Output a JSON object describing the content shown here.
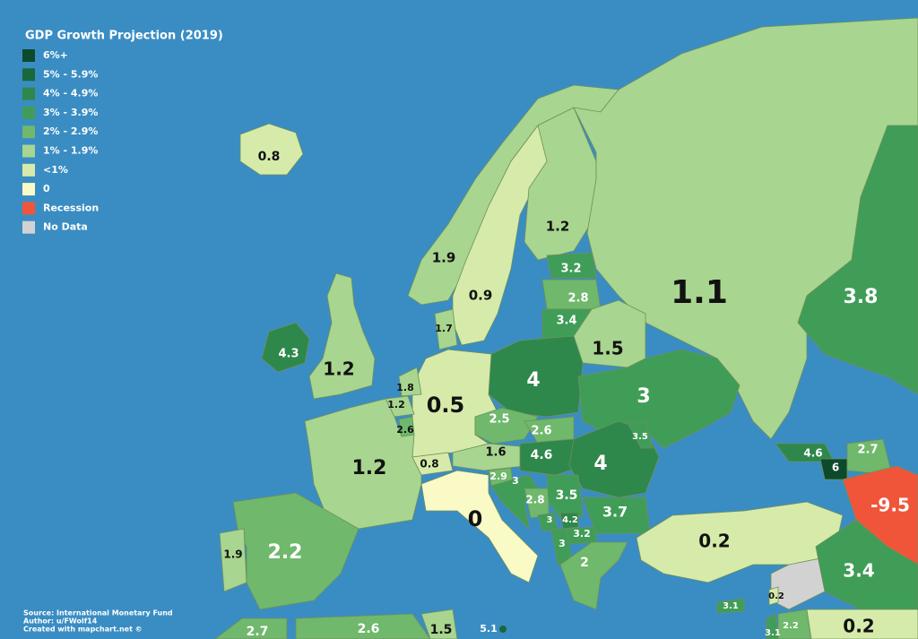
{
  "title": "GDP Growth Projection (2019)",
  "legend": [
    {
      "label": "6%+",
      "color": "#0c4a2a"
    },
    {
      "label": "5% - 5.9%",
      "color": "#17683c"
    },
    {
      "label": "4% - 4.9%",
      "color": "#2e874b"
    },
    {
      "label": "3% - 3.9%",
      "color": "#3f9d57"
    },
    {
      "label": "2% - 2.9%",
      "color": "#6fb86c"
    },
    {
      "label": "1% - 1.9%",
      "color": "#a8d58f"
    },
    {
      "label": "<1%",
      "color": "#d6ebaa"
    },
    {
      "label": "0",
      "color": "#fafac6"
    },
    {
      "label": "Recession",
      "color": "#f0553a"
    },
    {
      "label": "No Data",
      "color": "#d2d2d2"
    }
  ],
  "regions": [
    {
      "value": "0.8",
      "color": "#d6ebaa"
    },
    {
      "value": "4.3",
      "color": "#2e874b"
    },
    {
      "value": "1.2",
      "color": "#a8d58f"
    },
    {
      "value": "1.9",
      "color": "#a8d58f"
    },
    {
      "value": "0.9",
      "color": "#d6ebaa"
    },
    {
      "value": "1.2",
      "color": "#a8d58f"
    },
    {
      "value": "1.1",
      "color": "#a8d58f"
    },
    {
      "value": "3.8",
      "color": "#3f9d57"
    },
    {
      "value": "3.2",
      "color": "#3f9d57"
    },
    {
      "value": "2.8",
      "color": "#6fb86c"
    },
    {
      "value": "3.4",
      "color": "#3f9d57"
    },
    {
      "value": "1.5",
      "color": "#a8d58f"
    },
    {
      "value": "4",
      "color": "#2e874b"
    },
    {
      "value": "3",
      "color": "#3f9d57"
    },
    {
      "value": "0.5",
      "color": "#d6ebaa"
    },
    {
      "value": "1.8",
      "color": "#a8d58f"
    },
    {
      "value": "1.2",
      "color": "#a8d58f"
    },
    {
      "value": "2.6",
      "color": "#6fb86c"
    },
    {
      "value": "1.2",
      "color": "#a8d58f"
    },
    {
      "value": "0.8",
      "color": "#d6ebaa"
    },
    {
      "value": "1.6",
      "color": "#a8d58f"
    },
    {
      "value": "2.5",
      "color": "#6fb86c"
    },
    {
      "value": "2.6",
      "color": "#6fb86c"
    },
    {
      "value": "4.6",
      "color": "#2e874b"
    },
    {
      "value": "4",
      "color": "#2e874b"
    },
    {
      "value": "3.5",
      "color": "#3f9d57"
    },
    {
      "value": "0",
      "color": "#fafac6"
    },
    {
      "value": "2.9",
      "color": "#6fb86c"
    },
    {
      "value": "3",
      "color": "#3f9d57"
    },
    {
      "value": "2.8",
      "color": "#6fb86c"
    },
    {
      "value": "3.5",
      "color": "#3f9d57"
    },
    {
      "value": "3",
      "color": "#3f9d57"
    },
    {
      "value": "4.2",
      "color": "#2e874b"
    },
    {
      "value": "3.2",
      "color": "#3f9d57"
    },
    {
      "value": "3",
      "color": "#3f9d57"
    },
    {
      "value": "3.7",
      "color": "#3f9d57"
    },
    {
      "value": "2",
      "color": "#6fb86c"
    },
    {
      "value": "2.2",
      "color": "#6fb86c"
    },
    {
      "value": "1.9",
      "color": "#a8d58f"
    },
    {
      "value": "0.2",
      "color": "#d6ebaa"
    },
    {
      "value": "4.6",
      "color": "#2e874b"
    },
    {
      "value": "6",
      "color": "#0c4a2a"
    },
    {
      "value": "2.7",
      "color": "#6fb86c"
    },
    {
      "value": "-9.5",
      "color": "#f0553a"
    },
    {
      "value": "3.4",
      "color": "#3f9d57"
    },
    {
      "value": "0.2",
      "color": "#d6ebaa"
    },
    {
      "value": "3.1",
      "color": "#3f9d57"
    },
    {
      "value": "3.1",
      "color": "#3f9d57"
    },
    {
      "value": "2.2",
      "color": "#6fb86c"
    },
    {
      "value": "0.2",
      "color": "#d6ebaa"
    },
    {
      "value": "1.7",
      "color": "#a8d58f"
    },
    {
      "value": "2.7",
      "color": "#6fb86c"
    },
    {
      "value": "2.6",
      "color": "#6fb86c"
    },
    {
      "value": "1.5",
      "color": "#a8d58f"
    },
    {
      "value": "5.1",
      "color": "#17683c"
    }
  ],
  "footer": [
    "Source: International Monetary Fund",
    "Author: u/FWolf14",
    "Created with mapchart.net ©"
  ]
}
